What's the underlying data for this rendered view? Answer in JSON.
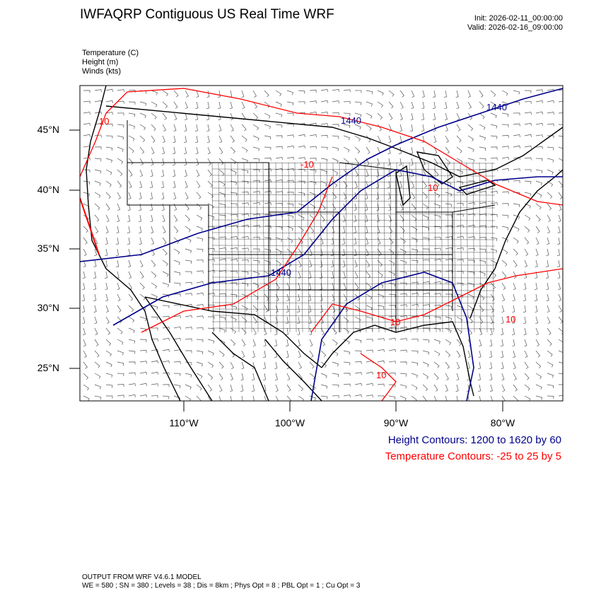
{
  "header": {
    "title": "IWFAQRP Contiguous US Real Time WRF",
    "init": "Init: 2026-02-11_00:00:00",
    "valid": "Valid: 2026-02-16_09:00:00"
  },
  "variables": [
    "Temperature   (C)",
    "Height   (m)",
    "Winds   (kts)"
  ],
  "map": {
    "lat_labels": [
      "45°N",
      "40°N",
      "35°N",
      "30°N",
      "25°N"
    ],
    "lon_labels": [
      "110°W",
      "100°W",
      "90°W",
      "80°W"
    ],
    "height_contour_labels": [
      "1440",
      "1440",
      "1440"
    ],
    "temperature_contour_labels": [
      "-10",
      "10",
      "10",
      "10",
      "10",
      "10"
    ],
    "colors": {
      "height": "#00008b",
      "temperature": "#ff0000",
      "boundaries": "#000000"
    }
  },
  "legend": {
    "height": "Height Contours: 1200 to 1620 by 60",
    "temperature": "Temperature Contours: -25 to 25 by 5"
  },
  "footer": {
    "line1": "OUTPUT FROM WRF V4.6.1 MODEL",
    "line2": "WE = 580 ; SN = 380 ; Levels = 38 ; Dis = 8km ; Phys Opt = 8 ; PBL Opt = 1 ; Cu Opt = 3"
  }
}
